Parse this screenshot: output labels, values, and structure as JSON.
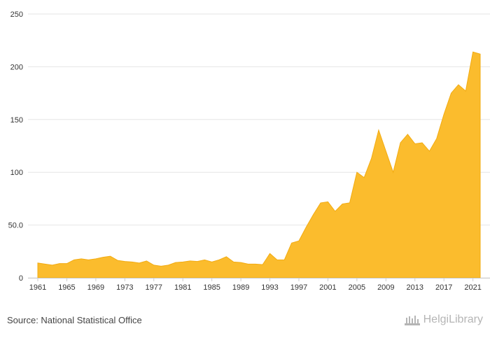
{
  "chart_data": {
    "type": "area",
    "title": "",
    "xlabel": "",
    "ylabel": "",
    "ylim": [
      0,
      250
    ],
    "yticks": [
      "0",
      "50.0",
      "100",
      "150",
      "200",
      "250"
    ],
    "ytick_values": [
      0,
      50,
      100,
      150,
      200,
      250
    ],
    "xticks": [
      "1961",
      "1965",
      "1969",
      "1973",
      "1977",
      "1981",
      "1985",
      "1989",
      "1993",
      "1997",
      "2001",
      "2005",
      "2009",
      "2013",
      "2017",
      "2021"
    ],
    "grid": true,
    "colors": {
      "fill": "#fbbc2d",
      "stroke": "#f2ab12"
    },
    "x": [
      1961,
      1962,
      1963,
      1964,
      1965,
      1966,
      1967,
      1968,
      1969,
      1970,
      1971,
      1972,
      1973,
      1974,
      1975,
      1976,
      1977,
      1978,
      1979,
      1980,
      1981,
      1982,
      1983,
      1984,
      1985,
      1986,
      1987,
      1988,
      1989,
      1990,
      1991,
      1992,
      1993,
      1994,
      1995,
      1996,
      1997,
      1998,
      1999,
      2000,
      2001,
      2002,
      2003,
      2004,
      2005,
      2006,
      2007,
      2008,
      2009,
      2010,
      2011,
      2012,
      2013,
      2014,
      2015,
      2016,
      2017,
      2018,
      2019,
      2020,
      2021,
      2022
    ],
    "values": [
      14,
      13,
      12,
      13.5,
      13.5,
      17,
      18,
      17,
      18,
      19.5,
      20.5,
      16.5,
      15.5,
      15,
      14,
      16,
      12,
      11,
      12,
      14.5,
      15,
      16,
      15.5,
      17,
      15,
      17,
      20,
      15,
      14.5,
      13,
      13,
      12.5,
      23,
      17,
      17,
      33,
      35,
      48,
      60,
      71,
      72,
      63,
      70,
      71,
      100,
      95,
      113,
      140,
      120,
      100,
      128,
      136,
      127,
      128,
      120,
      132,
      155,
      175,
      183,
      177,
      214,
      212
    ]
  },
  "footer": {
    "source": "Source: National Statistical Office",
    "logo_text": "HelgiLibrary"
  }
}
